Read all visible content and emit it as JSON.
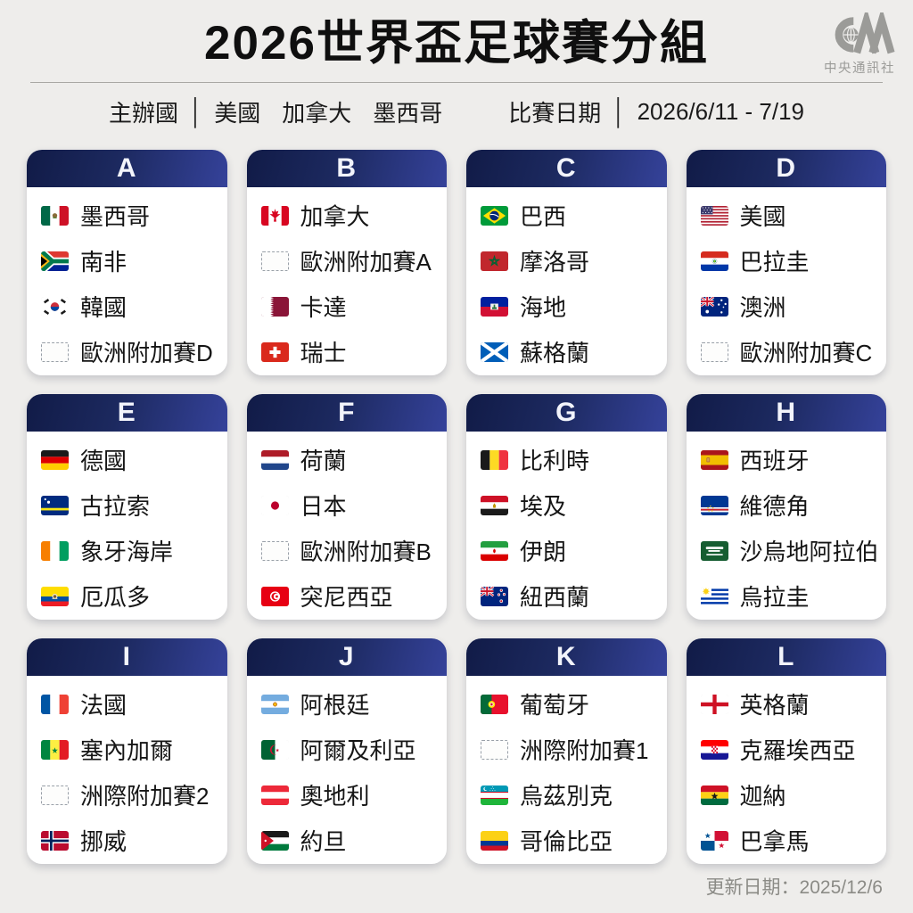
{
  "title": "2026世界盃足球賽分組",
  "logo": {
    "abbr": "CNA",
    "name": "中央通訊社"
  },
  "info": {
    "host_label": "主辦國",
    "separator": "│",
    "hosts": [
      "美國",
      "加拿大",
      "墨西哥"
    ],
    "date_label": "比賽日期",
    "date_value": "2026/6/11 - 7/19"
  },
  "footer": {
    "updated": "更新日期：2025/12/6"
  },
  "colors": {
    "page_bg": "#eeedeb",
    "card_bg": "#ffffff",
    "header_gradient_start": "#111b47",
    "header_gradient_end": "#35429a",
    "group_letter": "#f2f4fb",
    "team_text": "#151515",
    "divider": "#a9a8a4",
    "footer_text": "#8b8b86",
    "logo_gray": "#9b9b98"
  },
  "groups": [
    {
      "letter": "A",
      "teams": [
        {
          "flag": "mexico-flag-icon",
          "name": "墨西哥"
        },
        {
          "flag": "south-africa-flag-icon",
          "name": "南非"
        },
        {
          "flag": "south-korea-flag-icon",
          "name": "韓國"
        },
        {
          "flag": "placeholder-flag-icon",
          "name": "歐洲附加賽D"
        }
      ]
    },
    {
      "letter": "B",
      "teams": [
        {
          "flag": "canada-flag-icon",
          "name": "加拿大"
        },
        {
          "flag": "placeholder-flag-icon",
          "name": "歐洲附加賽A"
        },
        {
          "flag": "qatar-flag-icon",
          "name": "卡達"
        },
        {
          "flag": "switzerland-flag-icon",
          "name": "瑞士"
        }
      ]
    },
    {
      "letter": "C",
      "teams": [
        {
          "flag": "brazil-flag-icon",
          "name": "巴西"
        },
        {
          "flag": "morocco-flag-icon",
          "name": "摩洛哥"
        },
        {
          "flag": "haiti-flag-icon",
          "name": "海地"
        },
        {
          "flag": "scotland-flag-icon",
          "name": "蘇格蘭"
        }
      ]
    },
    {
      "letter": "D",
      "teams": [
        {
          "flag": "usa-flag-icon",
          "name": "美國"
        },
        {
          "flag": "paraguay-flag-icon",
          "name": "巴拉圭"
        },
        {
          "flag": "australia-flag-icon",
          "name": "澳洲"
        },
        {
          "flag": "placeholder-flag-icon",
          "name": "歐洲附加賽C"
        }
      ]
    },
    {
      "letter": "E",
      "teams": [
        {
          "flag": "germany-flag-icon",
          "name": "德國"
        },
        {
          "flag": "curacao-flag-icon",
          "name": "古拉索"
        },
        {
          "flag": "ivory-coast-flag-icon",
          "name": "象牙海岸"
        },
        {
          "flag": "ecuador-flag-icon",
          "name": "厄瓜多"
        }
      ]
    },
    {
      "letter": "F",
      "teams": [
        {
          "flag": "netherlands-flag-icon",
          "name": "荷蘭"
        },
        {
          "flag": "japan-flag-icon",
          "name": "日本"
        },
        {
          "flag": "placeholder-flag-icon",
          "name": "歐洲附加賽B"
        },
        {
          "flag": "tunisia-flag-icon",
          "name": "突尼西亞"
        }
      ]
    },
    {
      "letter": "G",
      "teams": [
        {
          "flag": "belgium-flag-icon",
          "name": "比利時"
        },
        {
          "flag": "egypt-flag-icon",
          "name": "埃及"
        },
        {
          "flag": "iran-flag-icon",
          "name": "伊朗"
        },
        {
          "flag": "new-zealand-flag-icon",
          "name": "紐西蘭"
        }
      ]
    },
    {
      "letter": "H",
      "teams": [
        {
          "flag": "spain-flag-icon",
          "name": "西班牙"
        },
        {
          "flag": "cape-verde-flag-icon",
          "name": "維德角"
        },
        {
          "flag": "saudi-arabia-flag-icon",
          "name": "沙烏地阿拉伯"
        },
        {
          "flag": "uruguay-flag-icon",
          "name": "烏拉圭"
        }
      ]
    },
    {
      "letter": "I",
      "teams": [
        {
          "flag": "france-flag-icon",
          "name": "法國"
        },
        {
          "flag": "senegal-flag-icon",
          "name": "塞內加爾"
        },
        {
          "flag": "placeholder-flag-icon",
          "name": "洲際附加賽2"
        },
        {
          "flag": "norway-flag-icon",
          "name": "挪威"
        }
      ]
    },
    {
      "letter": "J",
      "teams": [
        {
          "flag": "argentina-flag-icon",
          "name": "阿根廷"
        },
        {
          "flag": "algeria-flag-icon",
          "name": "阿爾及利亞"
        },
        {
          "flag": "austria-flag-icon",
          "name": "奧地利"
        },
        {
          "flag": "jordan-flag-icon",
          "name": "約旦"
        }
      ]
    },
    {
      "letter": "K",
      "teams": [
        {
          "flag": "portugal-flag-icon",
          "name": "葡萄牙"
        },
        {
          "flag": "placeholder-flag-icon",
          "name": "洲際附加賽1"
        },
        {
          "flag": "uzbekistan-flag-icon",
          "name": "烏茲別克"
        },
        {
          "flag": "colombia-flag-icon",
          "name": "哥倫比亞"
        }
      ]
    },
    {
      "letter": "L",
      "teams": [
        {
          "flag": "england-flag-icon",
          "name": "英格蘭"
        },
        {
          "flag": "croatia-flag-icon",
          "name": "克羅埃西亞"
        },
        {
          "flag": "ghana-flag-icon",
          "name": "迦納"
        },
        {
          "flag": "panama-flag-icon",
          "name": "巴拿馬"
        }
      ]
    }
  ]
}
